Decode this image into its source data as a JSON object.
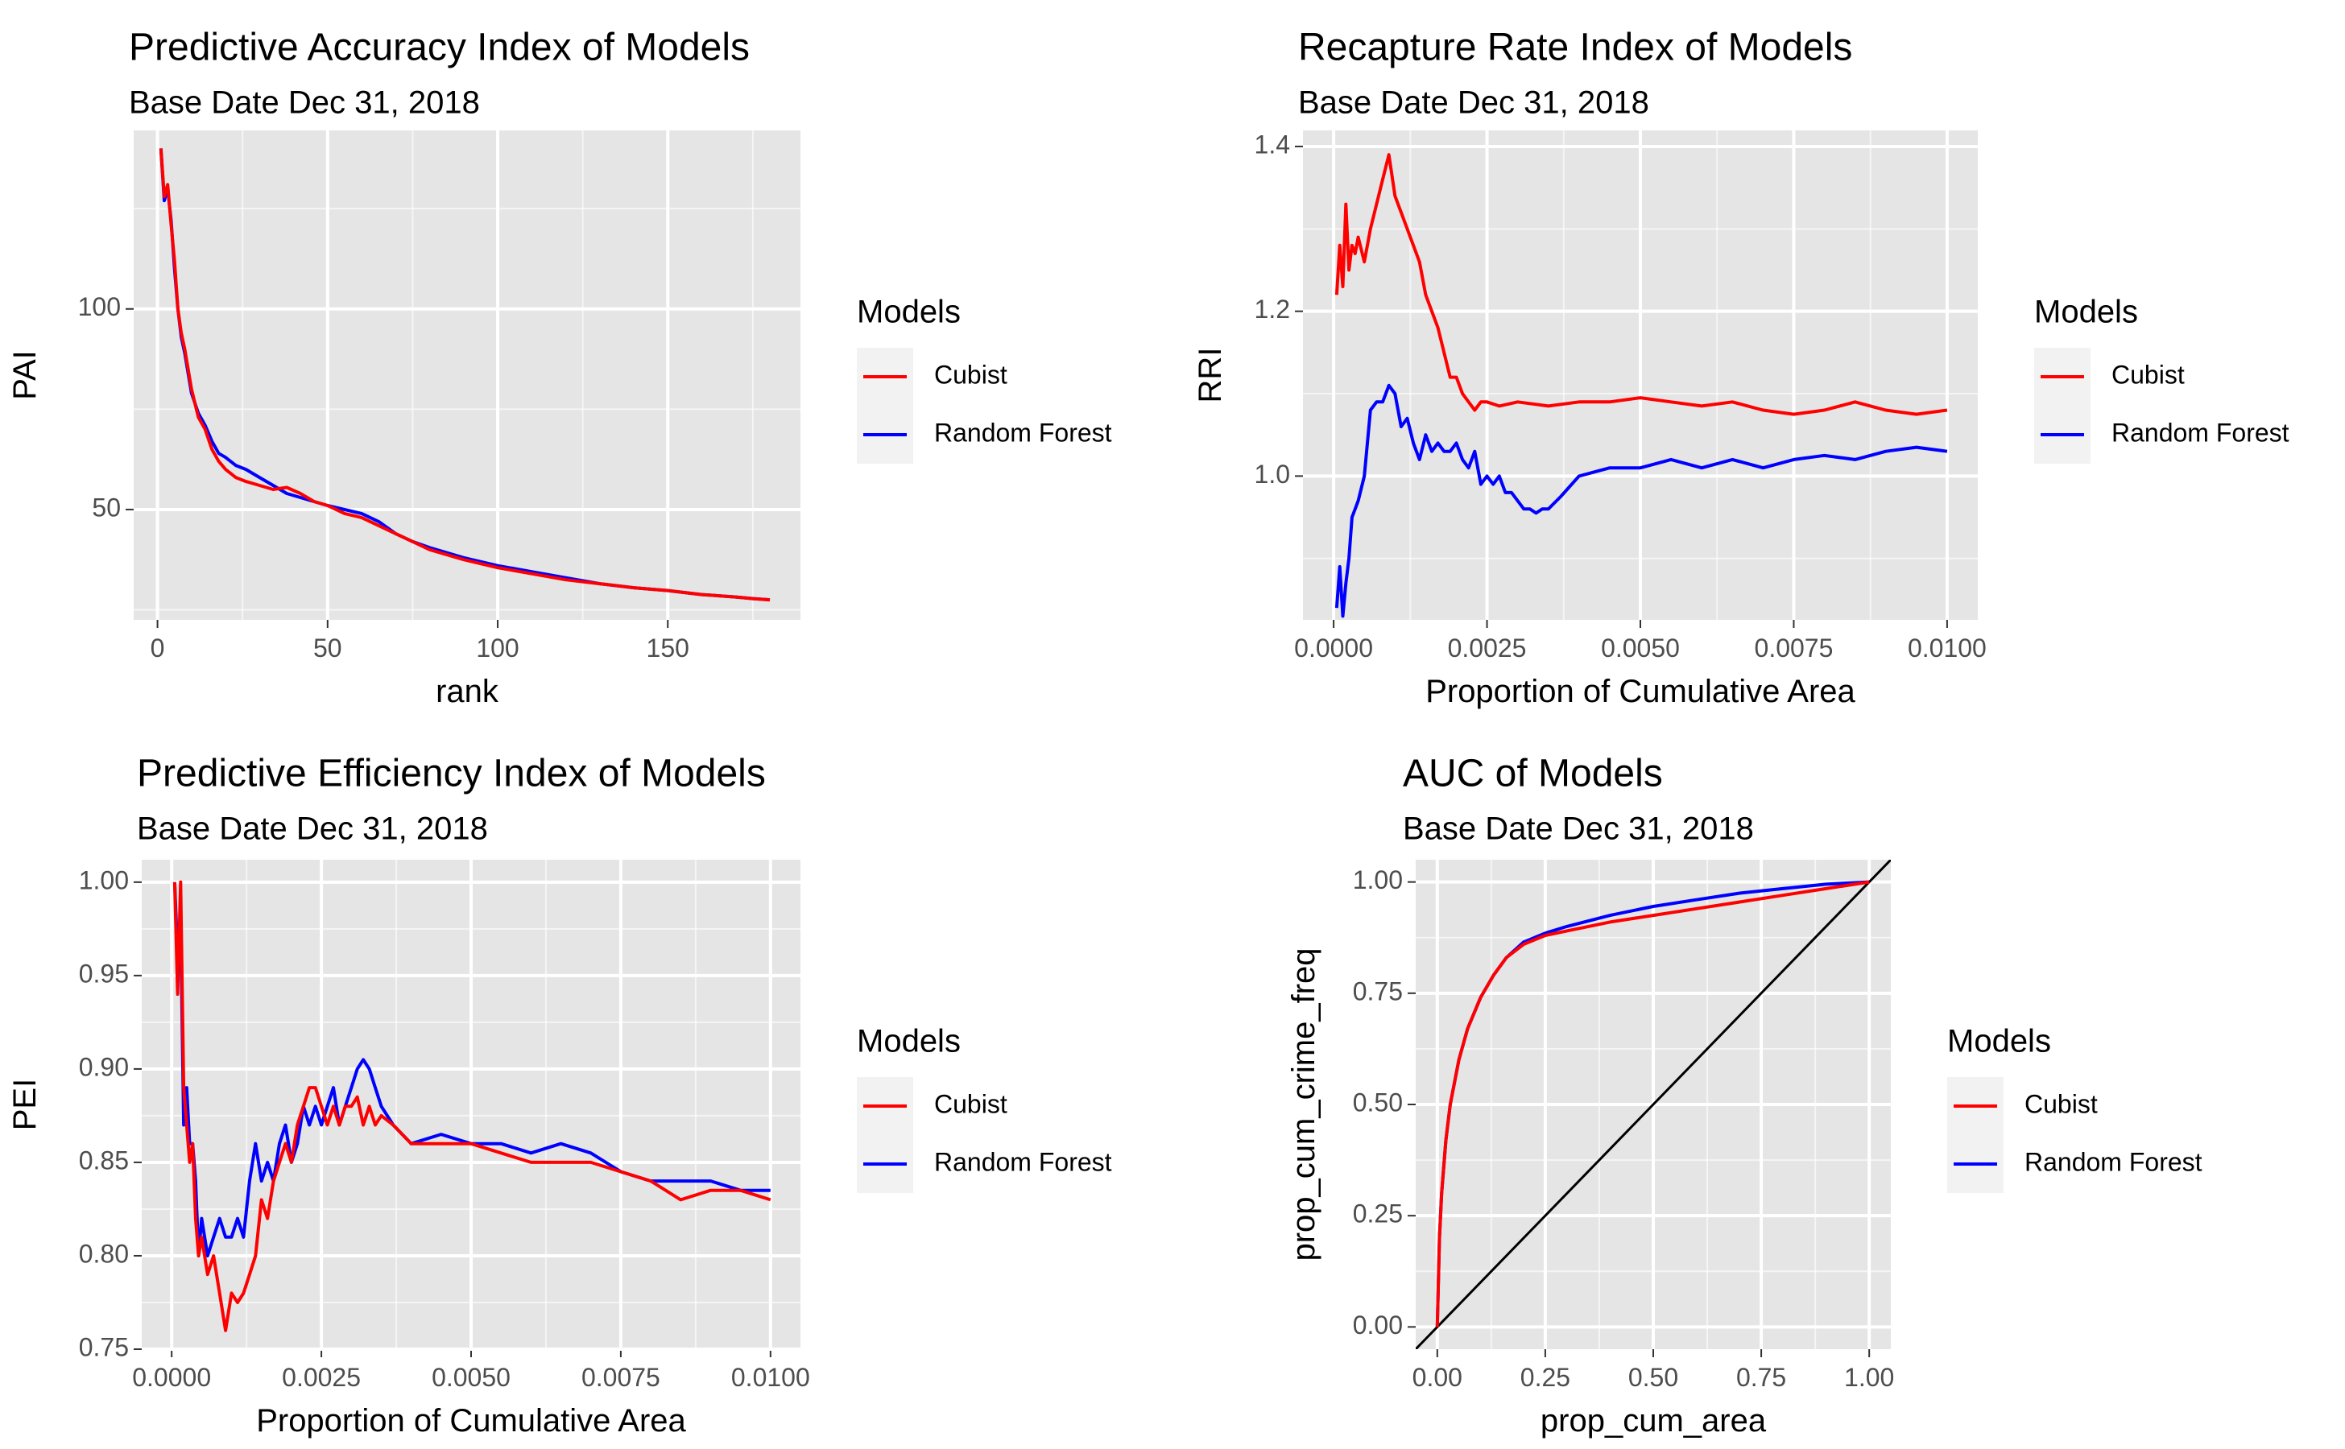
{
  "colors": {
    "cubist": "#ff0000",
    "random_forest": "#0000ff",
    "panel_bg": "#e5e5e5",
    "grid": "#ffffff",
    "diagonal": "#000000"
  },
  "chart_data": [
    {
      "id": "pai",
      "type": "line",
      "title": "Predictive Accuracy Index of Models",
      "subtitle": "Base Date Dec 31, 2018",
      "xlabel": "rank",
      "ylabel": "PAI",
      "xlim": [
        -7,
        189
      ],
      "ylim": [
        22.5,
        144.5
      ],
      "xticks": [
        0,
        50,
        100,
        150
      ],
      "xtick_labels": [
        "0",
        "50",
        "100",
        "150"
      ],
      "yticks": [
        50,
        100
      ],
      "ytick_labels": [
        "50",
        "100"
      ],
      "legend": {
        "title": "Models",
        "position": "right",
        "entries": [
          "Cubist",
          "Random Forest"
        ]
      },
      "series": [
        {
          "name": "Cubist",
          "color": "#ff0000",
          "x": [
            1,
            2,
            3,
            4,
            5,
            6,
            7,
            8,
            10,
            12,
            14,
            16,
            18,
            20,
            23,
            26,
            30,
            34,
            38,
            42,
            46,
            50,
            55,
            60,
            65,
            70,
            75,
            80,
            90,
            100,
            110,
            120,
            130,
            140,
            150,
            160,
            170,
            175,
            180
          ],
          "y": [
            140,
            128,
            131,
            121,
            112,
            100,
            94,
            90,
            80,
            73,
            70,
            65,
            62,
            60,
            58,
            57,
            56,
            55,
            55.5,
            54,
            52,
            51,
            49,
            48,
            46,
            44,
            42,
            40,
            37.5,
            35.5,
            34,
            32.5,
            31.5,
            30.5,
            29.8,
            28.8,
            28.2,
            27.8,
            27.5
          ]
        },
        {
          "name": "Random Forest",
          "color": "#0000ff",
          "x": [
            1,
            2,
            3,
            4,
            5,
            6,
            7,
            8,
            10,
            12,
            14,
            16,
            18,
            20,
            23,
            26,
            30,
            34,
            38,
            42,
            46,
            50,
            55,
            60,
            65,
            70,
            75,
            80,
            90,
            100,
            110,
            120,
            130,
            140,
            150,
            160,
            170,
            175,
            180
          ],
          "y": [
            140,
            127,
            130,
            122,
            110,
            100,
            93,
            89,
            79,
            74,
            71,
            67,
            64,
            63,
            61,
            60,
            58,
            56,
            54,
            53,
            52,
            51,
            50,
            49,
            47,
            44,
            42,
            40.5,
            38,
            36,
            34.5,
            33,
            31.5,
            30.5,
            29.8,
            28.8,
            28.2,
            27.8,
            27.5
          ]
        }
      ]
    },
    {
      "id": "rri",
      "type": "line",
      "title": "Recapture Rate Index of Models",
      "subtitle": "Base Date Dec 31, 2018",
      "xlabel": "Proportion of Cumulative Area",
      "ylabel": "RRI",
      "xlim": [
        -0.0005,
        0.0105
      ],
      "ylim": [
        0.8255,
        1.4195
      ],
      "xticks": [
        0,
        0.0025,
        0.005,
        0.0075,
        0.01
      ],
      "xtick_labels": [
        "0.0000",
        "0.0025",
        "0.0050",
        "0.0075",
        "0.0100"
      ],
      "yticks": [
        1.0,
        1.2,
        1.4
      ],
      "ytick_labels": [
        "1.0",
        "1.2",
        "1.4"
      ],
      "legend": {
        "title": "Models",
        "position": "right",
        "entries": [
          "Cubist",
          "Random Forest"
        ]
      },
      "series": [
        {
          "name": "Cubist",
          "color": "#ff0000",
          "x": [
            5e-05,
            0.0001,
            0.00015,
            0.0002,
            0.00025,
            0.0003,
            0.00035,
            0.0004,
            0.0005,
            0.0006,
            0.0007,
            0.0008,
            0.0009,
            0.001,
            0.0011,
            0.0012,
            0.0013,
            0.0014,
            0.0015,
            0.0016,
            0.0017,
            0.0018,
            0.0019,
            0.002,
            0.0021,
            0.0022,
            0.0023,
            0.0024,
            0.0025,
            0.0027,
            0.003,
            0.0035,
            0.004,
            0.0045,
            0.005,
            0.0055,
            0.006,
            0.0065,
            0.007,
            0.0075,
            0.008,
            0.0085,
            0.009,
            0.0095,
            0.01
          ],
          "y": [
            1.22,
            1.28,
            1.23,
            1.33,
            1.25,
            1.28,
            1.27,
            1.29,
            1.26,
            1.3,
            1.33,
            1.36,
            1.39,
            1.34,
            1.32,
            1.3,
            1.28,
            1.26,
            1.22,
            1.2,
            1.18,
            1.15,
            1.12,
            1.12,
            1.1,
            1.09,
            1.08,
            1.09,
            1.09,
            1.085,
            1.09,
            1.085,
            1.09,
            1.09,
            1.095,
            1.09,
            1.085,
            1.09,
            1.08,
            1.075,
            1.08,
            1.09,
            1.08,
            1.075,
            1.08
          ]
        },
        {
          "name": "Random Forest",
          "color": "#0000ff",
          "x": [
            5e-05,
            0.0001,
            0.00015,
            0.0002,
            0.00025,
            0.0003,
            0.00035,
            0.0004,
            0.0005,
            0.0006,
            0.0007,
            0.0008,
            0.0009,
            0.001,
            0.0011,
            0.0012,
            0.0013,
            0.0014,
            0.0015,
            0.0016,
            0.0017,
            0.0018,
            0.0019,
            0.002,
            0.0021,
            0.0022,
            0.0023,
            0.0024,
            0.0025,
            0.0026,
            0.0027,
            0.0028,
            0.0029,
            0.003,
            0.0031,
            0.0032,
            0.0033,
            0.0034,
            0.0035,
            0.0037,
            0.004,
            0.0045,
            0.005,
            0.0055,
            0.006,
            0.0065,
            0.007,
            0.0075,
            0.008,
            0.0085,
            0.009,
            0.0095,
            0.01
          ],
          "y": [
            0.84,
            0.89,
            0.83,
            0.87,
            0.9,
            0.95,
            0.96,
            0.97,
            1.0,
            1.08,
            1.09,
            1.09,
            1.11,
            1.1,
            1.06,
            1.07,
            1.04,
            1.02,
            1.05,
            1.03,
            1.04,
            1.03,
            1.03,
            1.04,
            1.02,
            1.01,
            1.03,
            0.99,
            1.0,
            0.99,
            1.0,
            0.98,
            0.98,
            0.97,
            0.96,
            0.96,
            0.955,
            0.96,
            0.96,
            0.975,
            1.0,
            1.01,
            1.01,
            1.02,
            1.01,
            1.02,
            1.01,
            1.02,
            1.025,
            1.02,
            1.03,
            1.035,
            1.03
          ]
        }
      ]
    },
    {
      "id": "pei",
      "type": "line",
      "title": "Predictive Efficiency Index of Models",
      "subtitle": "Base Date Dec 31, 2018",
      "xlabel": "Proportion of Cumulative Area",
      "ylabel": "PEI",
      "xlim": [
        -0.0005,
        0.0105
      ],
      "ylim": [
        0.75,
        1.012
      ],
      "xticks": [
        0,
        0.0025,
        0.005,
        0.0075,
        0.01
      ],
      "xtick_labels": [
        "0.0000",
        "0.0025",
        "0.0050",
        "0.0075",
        "0.0100"
      ],
      "yticks": [
        0.75,
        0.8,
        0.85,
        0.9,
        0.95,
        1.0
      ],
      "ytick_labels": [
        "0.75",
        "0.80",
        "0.85",
        "0.90",
        "0.95",
        "1.00"
      ],
      "legend": {
        "title": "Models",
        "position": "right",
        "entries": [
          "Cubist",
          "Random Forest"
        ]
      },
      "series": [
        {
          "name": "Cubist",
          "color": "#ff0000",
          "x": [
            5e-05,
            0.0001,
            0.00015,
            0.0002,
            0.00025,
            0.0003,
            0.00035,
            0.0004,
            0.00045,
            0.0005,
            0.0006,
            0.0007,
            0.0008,
            0.0009,
            0.001,
            0.0011,
            0.0012,
            0.0013,
            0.0014,
            0.0015,
            0.0016,
            0.0017,
            0.0018,
            0.0019,
            0.002,
            0.0021,
            0.0022,
            0.0023,
            0.0024,
            0.0025,
            0.0026,
            0.0027,
            0.0028,
            0.0029,
            0.003,
            0.0031,
            0.0032,
            0.0033,
            0.0034,
            0.0035,
            0.0037,
            0.004,
            0.0045,
            0.005,
            0.0055,
            0.006,
            0.0065,
            0.007,
            0.0075,
            0.008,
            0.0085,
            0.009,
            0.0095,
            0.01
          ],
          "y": [
            1.0,
            0.94,
            1.0,
            0.89,
            0.87,
            0.85,
            0.86,
            0.82,
            0.8,
            0.81,
            0.79,
            0.8,
            0.78,
            0.76,
            0.78,
            0.775,
            0.78,
            0.79,
            0.8,
            0.83,
            0.82,
            0.84,
            0.85,
            0.86,
            0.85,
            0.87,
            0.88,
            0.89,
            0.89,
            0.88,
            0.87,
            0.88,
            0.87,
            0.88,
            0.88,
            0.885,
            0.87,
            0.88,
            0.87,
            0.875,
            0.87,
            0.86,
            0.86,
            0.86,
            0.855,
            0.85,
            0.85,
            0.85,
            0.845,
            0.84,
            0.83,
            0.835,
            0.835,
            0.83
          ]
        },
        {
          "name": "Random Forest",
          "color": "#0000ff",
          "x": [
            5e-05,
            0.0001,
            0.00015,
            0.0002,
            0.00025,
            0.0003,
            0.00035,
            0.0004,
            0.00045,
            0.0005,
            0.0006,
            0.0007,
            0.0008,
            0.0009,
            0.001,
            0.0011,
            0.0012,
            0.0013,
            0.0014,
            0.0015,
            0.0016,
            0.0017,
            0.0018,
            0.0019,
            0.002,
            0.0021,
            0.0022,
            0.0023,
            0.0024,
            0.0025,
            0.0026,
            0.0027,
            0.0028,
            0.0029,
            0.003,
            0.0031,
            0.0032,
            0.0033,
            0.0034,
            0.0035,
            0.0037,
            0.004,
            0.0045,
            0.005,
            0.0055,
            0.006,
            0.0065,
            0.007,
            0.0075,
            0.008,
            0.0085,
            0.009,
            0.0095,
            0.01
          ],
          "y": [
            1.0,
            0.96,
            0.98,
            0.87,
            0.89,
            0.86,
            0.86,
            0.84,
            0.8,
            0.82,
            0.8,
            0.81,
            0.82,
            0.81,
            0.81,
            0.82,
            0.81,
            0.84,
            0.86,
            0.84,
            0.85,
            0.84,
            0.86,
            0.87,
            0.85,
            0.86,
            0.88,
            0.87,
            0.88,
            0.87,
            0.88,
            0.89,
            0.87,
            0.88,
            0.89,
            0.9,
            0.905,
            0.9,
            0.89,
            0.88,
            0.87,
            0.86,
            0.865,
            0.86,
            0.86,
            0.855,
            0.86,
            0.855,
            0.845,
            0.84,
            0.84,
            0.84,
            0.835,
            0.835
          ]
        }
      ]
    },
    {
      "id": "auc",
      "type": "line",
      "title": "AUC of Models",
      "subtitle": "Base Date Dec 31, 2018",
      "xlabel": "prop_cum_area",
      "ylabel": "prop_cum_crime_freq",
      "xlim": [
        -0.05,
        1.05
      ],
      "ylim": [
        -0.05,
        1.05
      ],
      "xticks": [
        0,
        0.25,
        0.5,
        0.75,
        1.0
      ],
      "xtick_labels": [
        "0.00",
        "0.25",
        "0.50",
        "0.75",
        "1.00"
      ],
      "yticks": [
        0,
        0.25,
        0.5,
        0.75,
        1.0
      ],
      "ytick_labels": [
        "0.00",
        "0.25",
        "0.50",
        "0.75",
        "1.00"
      ],
      "legend": {
        "title": "Models",
        "position": "right",
        "entries": [
          "Cubist",
          "Random Forest"
        ]
      },
      "diagonal": true,
      "series": [
        {
          "name": "Cubist",
          "color": "#ff0000",
          "x": [
            0,
            0.005,
            0.01,
            0.02,
            0.03,
            0.05,
            0.07,
            0.1,
            0.13,
            0.16,
            0.2,
            0.25,
            0.3,
            0.4,
            0.5,
            0.6,
            0.7,
            0.8,
            0.9,
            1.0
          ],
          "y": [
            0,
            0.2,
            0.3,
            0.42,
            0.5,
            0.6,
            0.67,
            0.74,
            0.79,
            0.83,
            0.86,
            0.88,
            0.89,
            0.91,
            0.925,
            0.94,
            0.955,
            0.97,
            0.985,
            1.0
          ]
        },
        {
          "name": "Random Forest",
          "color": "#0000ff",
          "x": [
            0,
            0.005,
            0.01,
            0.02,
            0.03,
            0.05,
            0.07,
            0.1,
            0.13,
            0.16,
            0.2,
            0.25,
            0.3,
            0.4,
            0.5,
            0.6,
            0.7,
            0.8,
            0.9,
            1.0
          ],
          "y": [
            0,
            0.2,
            0.3,
            0.42,
            0.5,
            0.6,
            0.67,
            0.74,
            0.79,
            0.83,
            0.865,
            0.885,
            0.9,
            0.925,
            0.945,
            0.96,
            0.975,
            0.985,
            0.995,
            1.0
          ]
        }
      ]
    }
  ]
}
